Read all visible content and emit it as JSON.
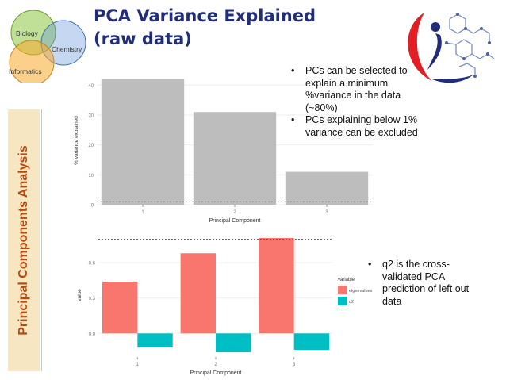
{
  "slide": {
    "title_line1": "PCA Variance Explained",
    "title_line2": "(raw data)",
    "sidebar_label": "Principal Components Analysis"
  },
  "venn": {
    "labels": [
      "Biology",
      "Chemistry",
      "Informatics"
    ],
    "colors": [
      "#8dc63f",
      "#5b8fd6",
      "#f7a92b"
    ]
  },
  "logo": {
    "icon": "molecule-logo-icon"
  },
  "bullets_top": [
    "PCs can be selected to explain a minimum %variance in the data (~80%)",
    "PCs explaining below 1% variance can be excluded"
  ],
  "bullets_bottom": [
    "q2 is the cross-validated PCA prediction of left out data"
  ],
  "chart_data": [
    {
      "type": "bar",
      "categories": [
        "1",
        "2",
        "3"
      ],
      "values": [
        42,
        31,
        11
      ],
      "xlabel": "Principal Component",
      "ylabel": "% variance explained",
      "ylim": [
        0,
        43
      ],
      "yticks": [
        0,
        10,
        20,
        30,
        40
      ],
      "reference_line": 1,
      "bar_color": "#bdbdbd",
      "grid": true
    },
    {
      "type": "bar",
      "categories": [
        "1",
        "2",
        "3"
      ],
      "series": [
        {
          "name": "eigenvalues",
          "values": [
            0.44,
            0.68,
            0.81
          ],
          "color": "#f8766d"
        },
        {
          "name": "q2",
          "values": [
            -0.12,
            -0.16,
            -0.14
          ],
          "color": "#00bfc4"
        }
      ],
      "xlabel": "Principal Component",
      "ylabel": "value",
      "ylim": [
        -0.2,
        0.85
      ],
      "yticks": [
        0.0,
        0.3,
        0.6
      ],
      "reference_line": 0.8,
      "legend_title": "variable",
      "legend_position": "right",
      "grid": true
    }
  ]
}
